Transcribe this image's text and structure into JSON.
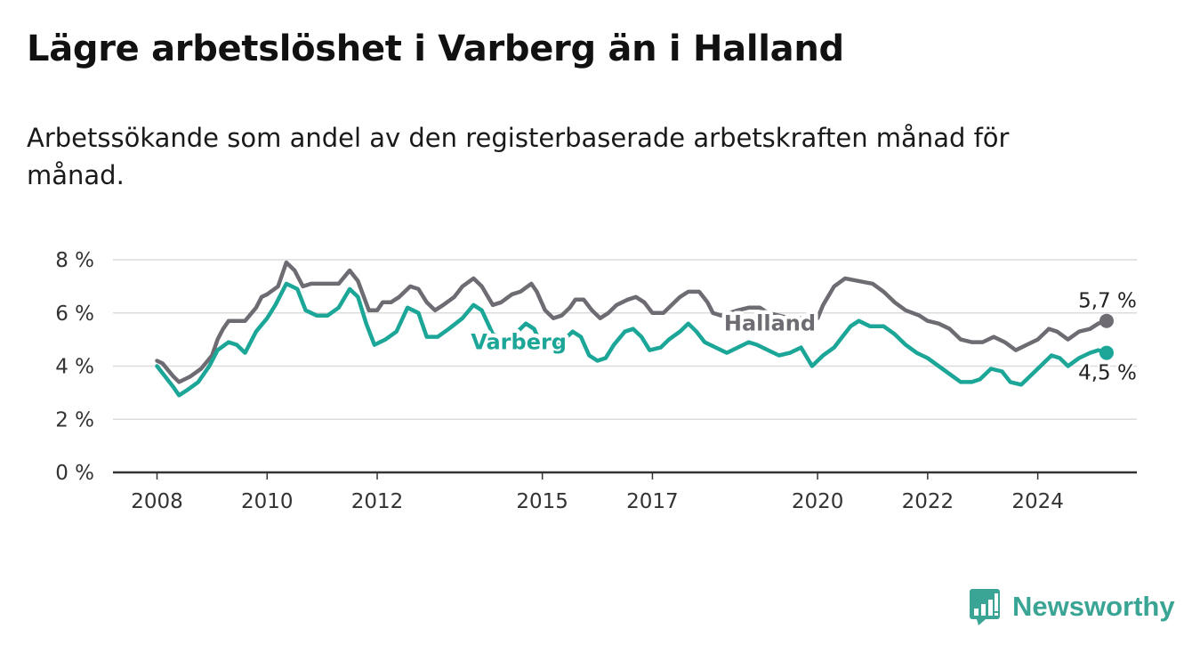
{
  "title": "Lägre arbetslöshet i Varberg än i Halland",
  "subtitle": "Arbetssökande som andel av den registerbaserade arbetskraften månad för månad.",
  "brand": {
    "name": "Newsworthy",
    "icon": "newsworthy-logo-icon",
    "color": "#3aa595"
  },
  "chart_data": {
    "type": "line",
    "title": "Lägre arbetslöshet i Varberg än i Halland",
    "subtitle": "Arbetssökande som andel av den registerbaserade arbetskraften månad för månad.",
    "xlabel": "",
    "ylabel": "",
    "xlim": [
      2007.2,
      2025.8
    ],
    "ylim": [
      0,
      8
    ],
    "grid": true,
    "legend": "inline labels",
    "y_ticks": [
      {
        "value": 0,
        "label": "0 %"
      },
      {
        "value": 2,
        "label": "2 %"
      },
      {
        "value": 4,
        "label": "4 %"
      },
      {
        "value": 6,
        "label": "6 %"
      },
      {
        "value": 8,
        "label": "8 %"
      }
    ],
    "x_ticks": [
      {
        "value": 2008,
        "label": "2008"
      },
      {
        "value": 2010,
        "label": "2010"
      },
      {
        "value": 2012,
        "label": "2012"
      },
      {
        "value": 2015,
        "label": "2015"
      },
      {
        "value": 2017,
        "label": "2017"
      },
      {
        "value": 2020,
        "label": "2020"
      },
      {
        "value": 2022,
        "label": "2022"
      },
      {
        "value": 2024,
        "label": "2024"
      }
    ],
    "series": [
      {
        "name": "Halland",
        "color": "#6e6c72",
        "end_label": "5,7 %",
        "points": [
          [
            2008.0,
            4.2
          ],
          [
            2008.1,
            4.1
          ],
          [
            2008.3,
            3.6
          ],
          [
            2008.4,
            3.4
          ],
          [
            2008.6,
            3.6
          ],
          [
            2008.8,
            3.9
          ],
          [
            2009.0,
            4.4
          ],
          [
            2009.1,
            5.0
          ],
          [
            2009.2,
            5.4
          ],
          [
            2009.3,
            5.7
          ],
          [
            2009.6,
            5.7
          ],
          [
            2009.8,
            6.2
          ],
          [
            2009.9,
            6.6
          ],
          [
            2010.0,
            6.7
          ],
          [
            2010.2,
            7.0
          ],
          [
            2010.35,
            7.9
          ],
          [
            2010.5,
            7.6
          ],
          [
            2010.65,
            7.0
          ],
          [
            2010.8,
            7.1
          ],
          [
            2011.0,
            7.1
          ],
          [
            2011.15,
            7.1
          ],
          [
            2011.3,
            7.1
          ],
          [
            2011.5,
            7.6
          ],
          [
            2011.65,
            7.2
          ],
          [
            2011.85,
            6.1
          ],
          [
            2012.0,
            6.1
          ],
          [
            2012.1,
            6.4
          ],
          [
            2012.25,
            6.4
          ],
          [
            2012.4,
            6.6
          ],
          [
            2012.6,
            7.0
          ],
          [
            2012.75,
            6.9
          ],
          [
            2012.9,
            6.4
          ],
          [
            2013.05,
            6.1
          ],
          [
            2013.2,
            6.3
          ],
          [
            2013.4,
            6.6
          ],
          [
            2013.55,
            7.0
          ],
          [
            2013.75,
            7.3
          ],
          [
            2013.9,
            7.0
          ],
          [
            2014.1,
            6.3
          ],
          [
            2014.25,
            6.4
          ],
          [
            2014.45,
            6.7
          ],
          [
            2014.6,
            6.8
          ],
          [
            2014.8,
            7.1
          ],
          [
            2014.9,
            6.8
          ],
          [
            2015.05,
            6.1
          ],
          [
            2015.2,
            5.8
          ],
          [
            2015.35,
            5.9
          ],
          [
            2015.5,
            6.2
          ],
          [
            2015.6,
            6.5
          ],
          [
            2015.75,
            6.5
          ],
          [
            2015.9,
            6.1
          ],
          [
            2016.05,
            5.8
          ],
          [
            2016.2,
            6.0
          ],
          [
            2016.35,
            6.3
          ],
          [
            2016.55,
            6.5
          ],
          [
            2016.7,
            6.6
          ],
          [
            2016.85,
            6.4
          ],
          [
            2017.0,
            6.0
          ],
          [
            2017.2,
            6.0
          ],
          [
            2017.35,
            6.3
          ],
          [
            2017.5,
            6.6
          ],
          [
            2017.65,
            6.8
          ],
          [
            2017.85,
            6.8
          ],
          [
            2018.0,
            6.4
          ],
          [
            2018.1,
            6.0
          ],
          [
            2018.25,
            5.9
          ],
          [
            2018.4,
            6.0
          ],
          [
            2018.55,
            6.1
          ],
          [
            2018.75,
            6.2
          ],
          [
            2018.95,
            6.2
          ],
          [
            2019.1,
            6.0
          ],
          [
            2019.3,
            5.9
          ],
          [
            2019.5,
            5.8
          ],
          [
            2019.7,
            5.8
          ],
          [
            2019.9,
            5.8
          ],
          [
            2020.0,
            5.8
          ],
          [
            2020.1,
            6.3
          ],
          [
            2020.3,
            7.0
          ],
          [
            2020.5,
            7.3
          ],
          [
            2020.75,
            7.2
          ],
          [
            2021.0,
            7.1
          ],
          [
            2021.2,
            6.8
          ],
          [
            2021.4,
            6.4
          ],
          [
            2021.6,
            6.1
          ],
          [
            2021.85,
            5.9
          ],
          [
            2022.0,
            5.7
          ],
          [
            2022.2,
            5.6
          ],
          [
            2022.4,
            5.4
          ],
          [
            2022.6,
            5.0
          ],
          [
            2022.8,
            4.9
          ],
          [
            2023.0,
            4.9
          ],
          [
            2023.2,
            5.1
          ],
          [
            2023.4,
            4.9
          ],
          [
            2023.6,
            4.6
          ],
          [
            2023.8,
            4.8
          ],
          [
            2024.0,
            5.0
          ],
          [
            2024.2,
            5.4
          ],
          [
            2024.35,
            5.3
          ],
          [
            2024.55,
            5.0
          ],
          [
            2024.75,
            5.3
          ],
          [
            2024.95,
            5.4
          ],
          [
            2025.1,
            5.6
          ],
          [
            2025.25,
            5.7
          ]
        ]
      },
      {
        "name": "Varberg",
        "color": "#1ba698",
        "end_label": "4,5 %",
        "points": [
          [
            2008.0,
            4.0
          ],
          [
            2008.15,
            3.6
          ],
          [
            2008.3,
            3.2
          ],
          [
            2008.4,
            2.9
          ],
          [
            2008.55,
            3.1
          ],
          [
            2008.75,
            3.4
          ],
          [
            2008.95,
            4.0
          ],
          [
            2009.1,
            4.6
          ],
          [
            2009.3,
            4.9
          ],
          [
            2009.45,
            4.8
          ],
          [
            2009.6,
            4.5
          ],
          [
            2009.8,
            5.3
          ],
          [
            2010.0,
            5.8
          ],
          [
            2010.15,
            6.3
          ],
          [
            2010.35,
            7.1
          ],
          [
            2010.55,
            6.9
          ],
          [
            2010.7,
            6.1
          ],
          [
            2010.9,
            5.9
          ],
          [
            2011.1,
            5.9
          ],
          [
            2011.3,
            6.2
          ],
          [
            2011.5,
            6.9
          ],
          [
            2011.65,
            6.6
          ],
          [
            2011.8,
            5.6
          ],
          [
            2011.95,
            4.8
          ],
          [
            2012.15,
            5.0
          ],
          [
            2012.35,
            5.3
          ],
          [
            2012.55,
            6.2
          ],
          [
            2012.75,
            6.0
          ],
          [
            2012.9,
            5.1
          ],
          [
            2013.1,
            5.1
          ],
          [
            2013.3,
            5.4
          ],
          [
            2013.55,
            5.8
          ],
          [
            2013.75,
            6.3
          ],
          [
            2013.9,
            6.1
          ],
          [
            2014.1,
            5.2
          ],
          [
            2014.3,
            5.0
          ],
          [
            2014.5,
            5.2
          ],
          [
            2014.7,
            5.6
          ],
          [
            2014.85,
            5.4
          ],
          [
            2015.0,
            4.7
          ],
          [
            2015.2,
            4.6
          ],
          [
            2015.4,
            5.0
          ],
          [
            2015.55,
            5.3
          ],
          [
            2015.7,
            5.1
          ],
          [
            2015.85,
            4.4
          ],
          [
            2016.0,
            4.2
          ],
          [
            2016.15,
            4.3
          ],
          [
            2016.3,
            4.8
          ],
          [
            2016.5,
            5.3
          ],
          [
            2016.65,
            5.4
          ],
          [
            2016.8,
            5.1
          ],
          [
            2016.95,
            4.6
          ],
          [
            2017.15,
            4.7
          ],
          [
            2017.3,
            5.0
          ],
          [
            2017.5,
            5.3
          ],
          [
            2017.65,
            5.6
          ],
          [
            2017.8,
            5.3
          ],
          [
            2017.95,
            4.9
          ],
          [
            2018.15,
            4.7
          ],
          [
            2018.35,
            4.5
          ],
          [
            2018.55,
            4.7
          ],
          [
            2018.75,
            4.9
          ],
          [
            2018.9,
            4.8
          ],
          [
            2019.1,
            4.6
          ],
          [
            2019.3,
            4.4
          ],
          [
            2019.5,
            4.5
          ],
          [
            2019.7,
            4.7
          ],
          [
            2019.9,
            4.0
          ],
          [
            2020.1,
            4.4
          ],
          [
            2020.3,
            4.7
          ],
          [
            2020.45,
            5.1
          ],
          [
            2020.6,
            5.5
          ],
          [
            2020.75,
            5.7
          ],
          [
            2020.95,
            5.5
          ],
          [
            2021.2,
            5.5
          ],
          [
            2021.4,
            5.2
          ],
          [
            2021.6,
            4.8
          ],
          [
            2021.8,
            4.5
          ],
          [
            2022.0,
            4.3
          ],
          [
            2022.2,
            4.0
          ],
          [
            2022.4,
            3.7
          ],
          [
            2022.6,
            3.4
          ],
          [
            2022.8,
            3.4
          ],
          [
            2022.95,
            3.5
          ],
          [
            2023.15,
            3.9
          ],
          [
            2023.35,
            3.8
          ],
          [
            2023.5,
            3.4
          ],
          [
            2023.7,
            3.3
          ],
          [
            2023.9,
            3.7
          ],
          [
            2024.05,
            4.0
          ],
          [
            2024.25,
            4.4
          ],
          [
            2024.4,
            4.3
          ],
          [
            2024.55,
            4.0
          ],
          [
            2024.75,
            4.3
          ],
          [
            2024.95,
            4.5
          ],
          [
            2025.1,
            4.6
          ],
          [
            2025.25,
            4.5
          ]
        ]
      }
    ],
    "inline_labels": [
      {
        "series": "Halland",
        "text": "Halland",
        "x": 2018.3,
        "y": 5.6
      },
      {
        "series": "Varberg",
        "text": "Varberg",
        "x": 2013.7,
        "y": 4.9
      }
    ]
  }
}
